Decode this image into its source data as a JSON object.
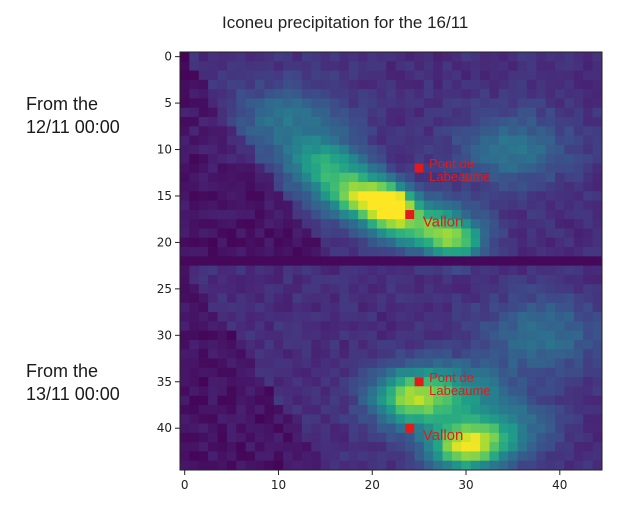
{
  "chart_data": {
    "type": "heatmap",
    "title": "Iconeu precipitation for the 16/11",
    "row_labels": [
      "From the\n12/11 00:00",
      "From the\n13/11 00:00"
    ],
    "xticks": [
      0,
      10,
      20,
      30,
      40
    ],
    "yticks": [
      0,
      5,
      10,
      15,
      20,
      25,
      30,
      35,
      40
    ],
    "xlim": [
      -0.5,
      44.5
    ],
    "ylim": [
      44.5,
      -0.5
    ],
    "colormap": "viridis",
    "separator_row": 22,
    "markers": [
      {
        "label": "Pont de\nLabeaume",
        "x": 25,
        "y": 12,
        "color": "#e31a1c"
      },
      {
        "label": "Vallon",
        "x": 24,
        "y": 17,
        "color": "#e31a1c"
      },
      {
        "label": "Pont de\nLabeaume",
        "x": 25,
        "y": 35,
        "color": "#e31a1c"
      },
      {
        "label": "Vallon",
        "x": 24,
        "y": 40,
        "color": "#e31a1c"
      }
    ],
    "hotspots": [
      {
        "x": 22,
        "y": 16,
        "v": 1.0,
        "rx": 2.0,
        "ry": 1.6
      },
      {
        "x": 19,
        "y": 15,
        "v": 0.7,
        "rx": 3.5,
        "ry": 2.5
      },
      {
        "x": 25,
        "y": 18,
        "v": 0.6,
        "rx": 5.0,
        "ry": 2.5
      },
      {
        "x": 15,
        "y": 12,
        "v": 0.45,
        "rx": 4.0,
        "ry": 3.0
      },
      {
        "x": 29,
        "y": 20,
        "v": 0.5,
        "rx": 3.0,
        "ry": 2.0
      },
      {
        "x": 11,
        "y": 7,
        "v": 0.25,
        "rx": 6.0,
        "ry": 4.0
      },
      {
        "x": 35,
        "y": 10,
        "v": 0.25,
        "rx": 6.0,
        "ry": 4.0
      },
      {
        "x": 30,
        "y": 42,
        "v": 0.75,
        "rx": 4.0,
        "ry": 2.5
      },
      {
        "x": 24,
        "y": 37,
        "v": 0.5,
        "rx": 4.0,
        "ry": 3.0
      },
      {
        "x": 28,
        "y": 36,
        "v": 0.4,
        "rx": 6.0,
        "ry": 3.0
      },
      {
        "x": 38,
        "y": 30,
        "v": 0.25,
        "rx": 6.0,
        "ry": 4.0
      },
      {
        "x": 34,
        "y": 40,
        "v": 0.3,
        "rx": 5.0,
        "ry": 3.0
      }
    ]
  }
}
